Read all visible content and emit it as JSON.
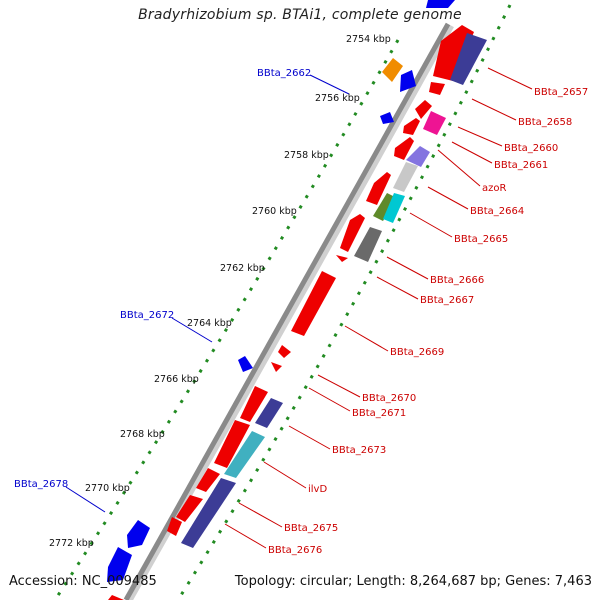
{
  "title": "Bradyrhizobium sp. BTAi1, complete genome",
  "footer": {
    "accession": "Accession: NC_009485",
    "summary": "Topology: circular; Length: 8,264,687 bp; Genes: 7,463"
  },
  "colors": {
    "forward_labels": "#0000cc",
    "reverse_labels": "#cc0000",
    "backbone": "#8a8a8a",
    "tick_dots": "#228b22"
  },
  "kbp_ticks": [
    "2754 kbp",
    "2756 kbp",
    "2758 kbp",
    "2760 kbp",
    "2762 kbp",
    "2764 kbp",
    "2766 kbp",
    "2768 kbp",
    "2770 kbp",
    "2772 kbp"
  ],
  "forward_gene_labels": [
    "BBta_2662",
    "BBta_2672",
    "BBta_2678"
  ],
  "reverse_gene_labels": [
    "BBta_2657",
    "BBta_2658",
    "BBta_2660",
    "BBta_2661",
    "azoR",
    "BBta_2664",
    "BBta_2665",
    "BBta_2666",
    "BBta_2667",
    "BBta_2669",
    "BBta_2670",
    "BBta_2671",
    "BBta_2673",
    "ilvD",
    "BBta_2675",
    "BBta_2676"
  ]
}
